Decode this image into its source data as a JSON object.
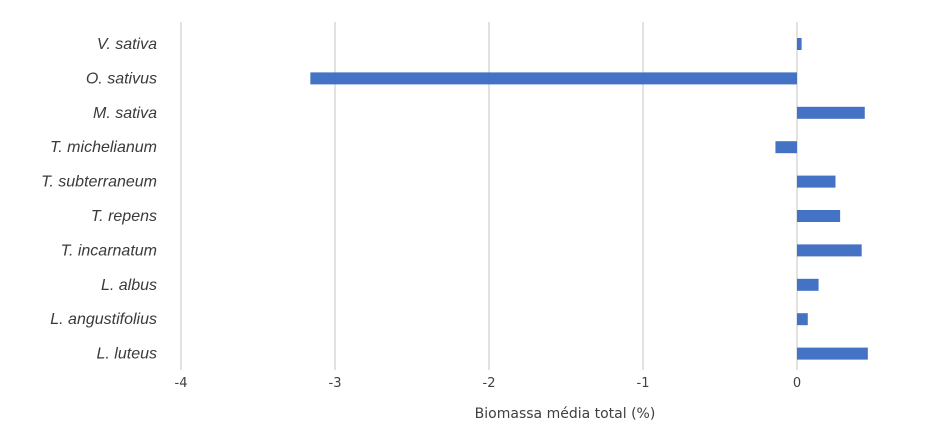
{
  "chart_data": {
    "type": "bar",
    "orientation": "horizontal",
    "title": "",
    "xlabel": "Biomassa média total (%)",
    "ylabel": "",
    "xlim": [
      -4,
      0.9
    ],
    "xticks": [
      -4,
      -3,
      -2,
      -1,
      0
    ],
    "xtick_labels": [
      "-4",
      "-3",
      "-2",
      "-1",
      "0"
    ],
    "grid": "vertical",
    "bar_color": "#4472c4",
    "categories": [
      "V. sativa",
      "O. sativus",
      "M. sativa",
      "T.  michelianum",
      "T. subterraneum",
      "T. repens",
      "T. incarnatum",
      "L. albus",
      "L. angustifolius",
      "L. luteus"
    ],
    "values": [
      0.03,
      -3.16,
      0.44,
      -0.14,
      0.25,
      0.28,
      0.42,
      0.14,
      0.07,
      0.46
    ]
  }
}
